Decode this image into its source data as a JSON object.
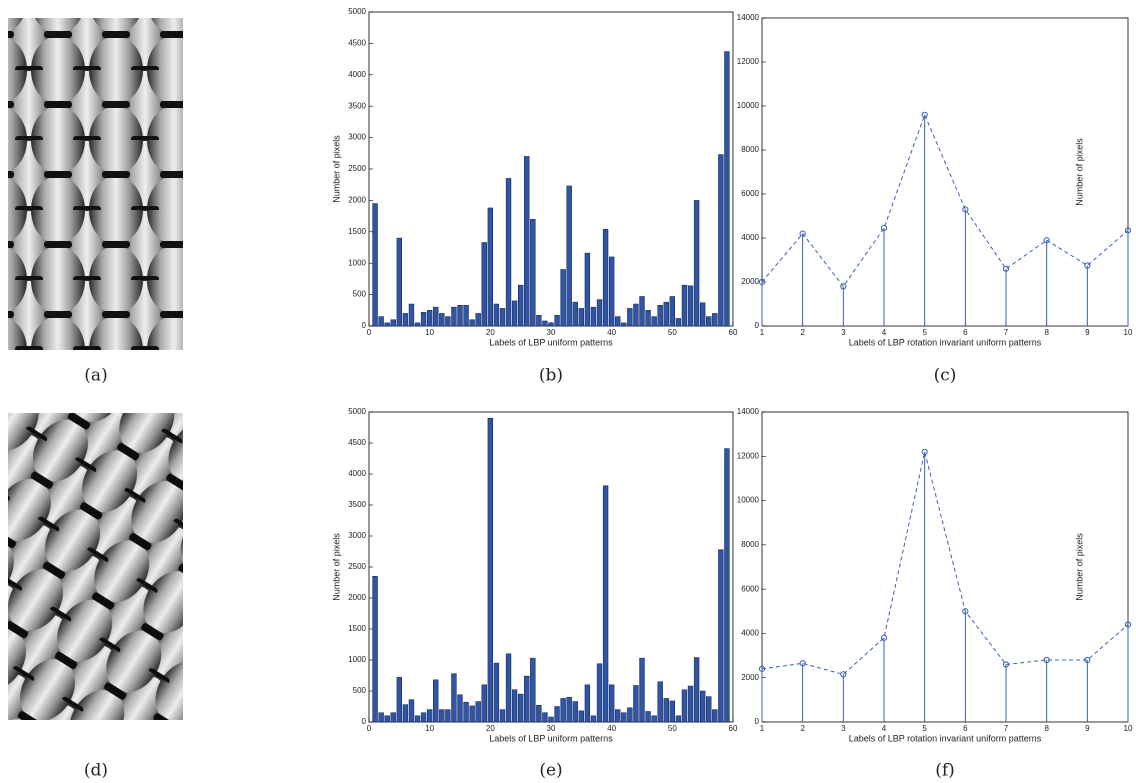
{
  "images": [
    {
      "caption": "(a)"
    },
    {
      "caption": "(d)"
    }
  ],
  "chart_data": [
    {
      "type": "bar",
      "caption": "(b)",
      "xlabel": "Labels of LBP uniform patterns",
      "ylabel": "Number of pixels",
      "color": "#2f55a4",
      "x": [
        1,
        2,
        3,
        4,
        5,
        6,
        7,
        8,
        9,
        10,
        11,
        12,
        13,
        14,
        15,
        16,
        17,
        18,
        19,
        20,
        21,
        22,
        23,
        24,
        25,
        26,
        27,
        28,
        29,
        30,
        31,
        32,
        33,
        34,
        35,
        36,
        37,
        38,
        39,
        40,
        41,
        42,
        43,
        44,
        45,
        46,
        47,
        48,
        49,
        50,
        51,
        52,
        53,
        54,
        55,
        56,
        57,
        58,
        59
      ],
      "values": [
        1950,
        150,
        50,
        100,
        1400,
        200,
        350,
        50,
        220,
        250,
        300,
        200,
        150,
        300,
        330,
        330,
        100,
        200,
        1330,
        1880,
        350,
        280,
        2350,
        400,
        650,
        2700,
        1700,
        170,
        80,
        50,
        170,
        900,
        2230,
        380,
        280,
        1160,
        300,
        420,
        1540,
        1100,
        150,
        50,
        280,
        350,
        470,
        250,
        150,
        330,
        380,
        470,
        120,
        650,
        640,
        2000,
        370,
        150,
        200,
        2730,
        4370
      ],
      "xlim": [
        0,
        60
      ],
      "xticks": [
        0,
        10,
        20,
        30,
        40,
        50,
        60
      ],
      "ylim": [
        0,
        5000
      ],
      "yticks": [
        0,
        500,
        1000,
        1500,
        2000,
        2500,
        3000,
        3500,
        4000,
        4500,
        5000
      ]
    },
    {
      "type": "stem",
      "caption": "(c)",
      "xlabel": "Labels of LBP rotation invariant uniform patterns",
      "ylabel": "Number of pixels",
      "color": "#3a5fb4",
      "x": [
        1,
        2,
        3,
        4,
        5,
        6,
        7,
        8,
        9,
        10
      ],
      "values": [
        2000,
        4200,
        1800,
        4450,
        9600,
        5300,
        2600,
        3900,
        2750,
        4350
      ],
      "xlim": [
        1,
        10
      ],
      "xticks": [
        1,
        2,
        3,
        4,
        5,
        6,
        7,
        8,
        9,
        10
      ],
      "ylim": [
        0,
        14000
      ],
      "yticks": [
        0,
        2000,
        4000,
        6000,
        8000,
        10000,
        12000,
        14000
      ]
    },
    {
      "type": "bar",
      "caption": "(e)",
      "xlabel": "Labels of LBP uniform patterns",
      "ylabel": "Number of pixels",
      "color": "#2f55a4",
      "x": [
        1,
        2,
        3,
        4,
        5,
        6,
        7,
        8,
        9,
        10,
        11,
        12,
        13,
        14,
        15,
        16,
        17,
        18,
        19,
        20,
        21,
        22,
        23,
        24,
        25,
        26,
        27,
        28,
        29,
        30,
        31,
        32,
        33,
        34,
        35,
        36,
        37,
        38,
        39,
        40,
        41,
        42,
        43,
        44,
        45,
        46,
        47,
        48,
        49,
        50,
        51,
        52,
        53,
        54,
        55,
        56,
        57,
        58,
        59
      ],
      "values": [
        2350,
        150,
        100,
        150,
        720,
        280,
        360,
        100,
        150,
        200,
        680,
        200,
        200,
        780,
        440,
        320,
        260,
        330,
        600,
        4900,
        950,
        200,
        1100,
        520,
        450,
        740,
        1030,
        270,
        150,
        80,
        250,
        380,
        400,
        330,
        180,
        600,
        100,
        940,
        3810,
        600,
        200,
        150,
        230,
        590,
        1030,
        170,
        100,
        650,
        380,
        340,
        100,
        520,
        580,
        1040,
        500,
        410,
        200,
        2780,
        4410
      ],
      "xlim": [
        0,
        60
      ],
      "xticks": [
        0,
        10,
        20,
        30,
        40,
        50,
        60
      ],
      "ylim": [
        0,
        5000
      ],
      "yticks": [
        0,
        500,
        1000,
        1500,
        2000,
        2500,
        3000,
        3500,
        4000,
        4500,
        5000
      ]
    },
    {
      "type": "stem",
      "caption": "(f)",
      "xlabel": "Labels of LBP rotation invariant uniform patterns",
      "ylabel": "Number of pixels",
      "color": "#3a5fb4",
      "x": [
        1,
        2,
        3,
        4,
        5,
        6,
        7,
        8,
        9,
        10
      ],
      "values": [
        2400,
        2650,
        2150,
        3800,
        12200,
        5000,
        2600,
        2800,
        2800,
        4400
      ],
      "xlim": [
        1,
        10
      ],
      "xticks": [
        1,
        2,
        3,
        4,
        5,
        6,
        7,
        8,
        9,
        10
      ],
      "ylim": [
        0,
        14000
      ],
      "yticks": [
        0,
        2000,
        4000,
        6000,
        8000,
        10000,
        12000,
        14000
      ]
    }
  ]
}
